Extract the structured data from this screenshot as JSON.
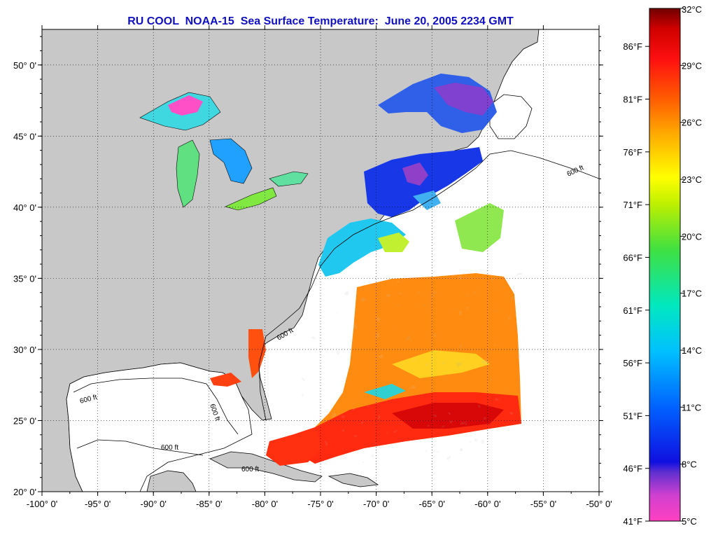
{
  "title": "RU COOL  NOAA-15  Sea Surface Temperature:  June 20, 2005 2234 GMT",
  "map": {
    "lon_range": [
      -100,
      -50
    ],
    "lat_range": [
      20,
      52.5
    ],
    "lon_ticks": [
      {
        "value": -100,
        "label": "-100° 0'"
      },
      {
        "value": -95,
        "label": "-95° 0'"
      },
      {
        "value": -90,
        "label": "-90° 0'"
      },
      {
        "value": -85,
        "label": "-85° 0'"
      },
      {
        "value": -80,
        "label": "-80° 0'"
      },
      {
        "value": -75,
        "label": "-75° 0'"
      },
      {
        "value": -70,
        "label": "-70° 0'"
      },
      {
        "value": -65,
        "label": "-65° 0'"
      },
      {
        "value": -60,
        "label": "-60° 0'"
      },
      {
        "value": -55,
        "label": "-55° 0'"
      },
      {
        "value": -50,
        "label": "-50° 0'"
      }
    ],
    "lat_ticks": [
      {
        "value": 20,
        "label": "20° 0'"
      },
      {
        "value": 25,
        "label": "25° 0'"
      },
      {
        "value": 30,
        "label": "30° 0'"
      },
      {
        "value": 35,
        "label": "35° 0'"
      },
      {
        "value": 40,
        "label": "40° 0'"
      },
      {
        "value": 45,
        "label": "45° 0'"
      },
      {
        "value": 50,
        "label": "50° 0'"
      }
    ],
    "grid": "dotted",
    "land_color": "#c8c8c8",
    "contour_label": "600 ft"
  },
  "colorbar": {
    "celsius_range": [
      5,
      32
    ],
    "celsius_labels": [
      {
        "value": 32,
        "label": "32°C"
      },
      {
        "value": 29,
        "label": "29°C"
      },
      {
        "value": 26,
        "label": "26°C"
      },
      {
        "value": 23,
        "label": "23°C"
      },
      {
        "value": 20,
        "label": "20°C"
      },
      {
        "value": 17,
        "label": "17°C"
      },
      {
        "value": 14,
        "label": "14°C"
      },
      {
        "value": 11,
        "label": "11°C"
      },
      {
        "value": 8,
        "label": "8°C"
      },
      {
        "value": 5,
        "label": "5°C"
      }
    ],
    "fahrenheit_labels": [
      {
        "value": 86,
        "label": "86°F"
      },
      {
        "value": 81,
        "label": "81°F"
      },
      {
        "value": 76,
        "label": "76°F"
      },
      {
        "value": 71,
        "label": "71°F"
      },
      {
        "value": 66,
        "label": "66°F"
      },
      {
        "value": 61,
        "label": "61°F"
      },
      {
        "value": 56,
        "label": "56°F"
      },
      {
        "value": 51,
        "label": "51°F"
      },
      {
        "value": 46,
        "label": "46°F"
      },
      {
        "value": 41,
        "label": "41°F"
      }
    ],
    "colors": [
      "#ff40c0",
      "#8040d0",
      "#1010e0",
      "#0060ff",
      "#00c0ff",
      "#00e8c0",
      "#40e040",
      "#c0f000",
      "#ffff00",
      "#ffb000",
      "#ff6000",
      "#ff1010",
      "#e00000",
      "#700000"
    ]
  }
}
